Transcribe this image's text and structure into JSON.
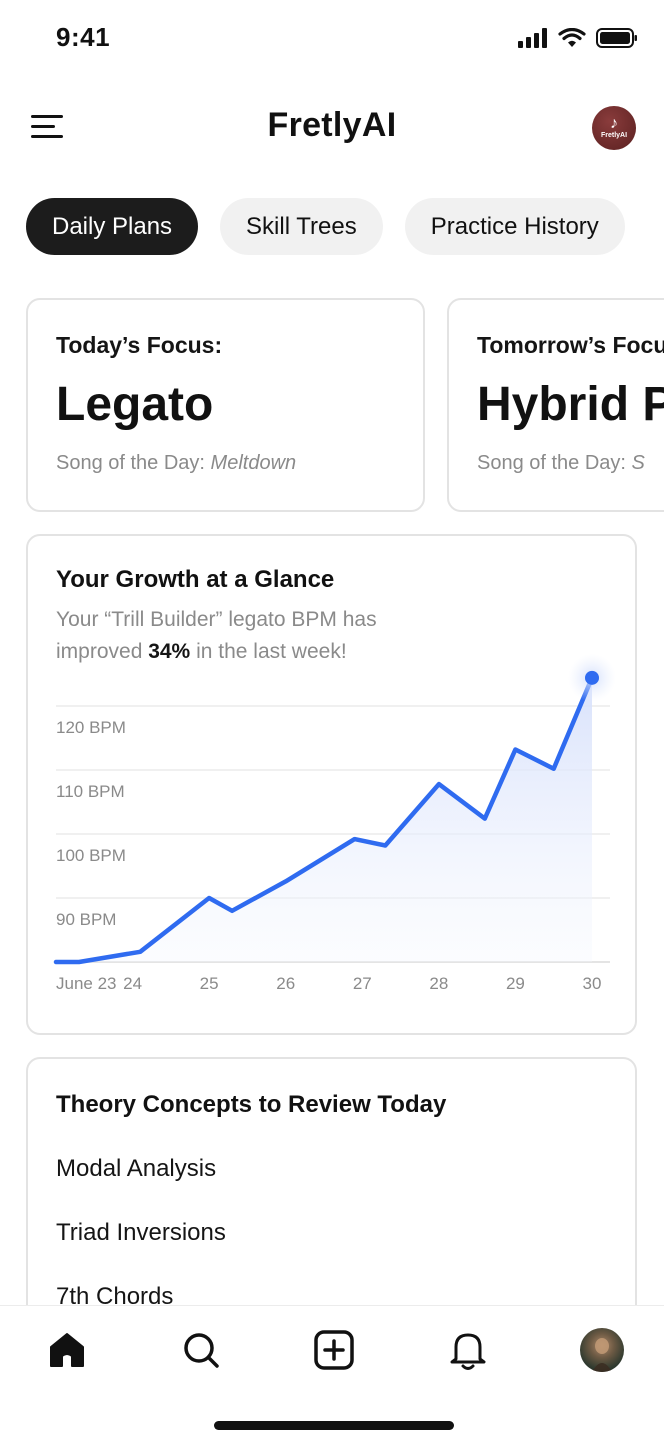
{
  "status_bar": {
    "time": "9:41",
    "icons": [
      "signal-icon",
      "wifi-icon",
      "battery-icon"
    ]
  },
  "header": {
    "menu_icon": "hamburger-menu-icon",
    "title": "FretlyAI",
    "logo_text": "FretlyAI",
    "logo_glyph": "♪"
  },
  "tabs": [
    {
      "label": "Daily Plans",
      "active": true
    },
    {
      "label": "Skill Trees",
      "active": false
    },
    {
      "label": "Practice History",
      "active": false
    }
  ],
  "focus_cards": [
    {
      "label": "Today’s Focus:",
      "title": "Legato",
      "song_prefix": "Song of the Day: ",
      "song": "Meltdown"
    },
    {
      "label": "Tomorrow’s Focus:",
      "title": "Hybrid Picking",
      "song_prefix": "Song of the Day: ",
      "song": "S"
    }
  ],
  "growth": {
    "title": "Your Growth at a Glance",
    "desc_part1": "Your “Trill Builder” legato BPM has improved ",
    "desc_bold": "34%",
    "desc_part2": " in the last week!"
  },
  "chart_data": {
    "type": "area",
    "x": [
      "June 23",
      "24",
      "25",
      "26",
      "27",
      "28",
      "29",
      "30"
    ],
    "y_ticks": [
      "120 BPM",
      "110 BPM",
      "100 BPM",
      "90 BPM"
    ],
    "ylim": [
      80,
      120
    ],
    "points": [
      [
        0.0,
        80
      ],
      [
        0.3,
        80
      ],
      [
        1.1,
        81.6
      ],
      [
        2.0,
        90
      ],
      [
        2.3,
        88
      ],
      [
        3.0,
        92.6
      ],
      [
        3.9,
        99.2
      ],
      [
        4.3,
        98.2
      ],
      [
        5.0,
        107.8
      ],
      [
        5.6,
        102.4
      ],
      [
        6.0,
        113.2
      ],
      [
        6.5,
        110.2
      ],
      [
        7.0,
        124.4
      ]
    ],
    "line_color": "#2f6bf0",
    "fill_color": "#dfe7fb",
    "grid": true
  },
  "theory": {
    "title": "Theory Concepts to Review Today",
    "items": [
      "Modal Analysis",
      "Triad Inversions",
      "7th Chords"
    ]
  },
  "bottom_nav": [
    {
      "name": "home-icon",
      "active": true
    },
    {
      "name": "search-icon",
      "active": false
    },
    {
      "name": "add-icon",
      "active": false
    },
    {
      "name": "bell-icon",
      "active": false
    },
    {
      "name": "profile-avatar",
      "active": false
    }
  ]
}
